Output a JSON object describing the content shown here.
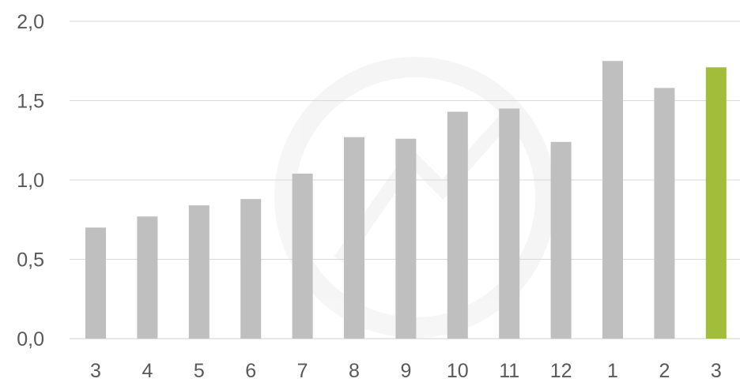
{
  "chart_data": {
    "type": "bar",
    "title": "",
    "xlabel": "",
    "ylabel": "",
    "categories": [
      "3",
      "4",
      "5",
      "6",
      "7",
      "8",
      "9",
      "10",
      "11",
      "12",
      "1",
      "2",
      "3"
    ],
    "values": [
      0.7,
      0.77,
      0.84,
      0.88,
      1.04,
      1.27,
      1.26,
      1.43,
      1.45,
      1.24,
      1.75,
      1.58,
      1.71
    ],
    "ylim": [
      0,
      2.0
    ],
    "yticks": [
      "0,0",
      "0,5",
      "1,0",
      "1,5",
      "2,0"
    ],
    "ytick_values": [
      0,
      0.5,
      1.0,
      1.5,
      2.0
    ],
    "grid": true,
    "legend": "none",
    "colors": {
      "bar": "#bfbfbf",
      "highlight_bar": "#a2bd3a",
      "highlight_index": 12,
      "grid": "#d9d9d9",
      "text": "#595959"
    }
  }
}
